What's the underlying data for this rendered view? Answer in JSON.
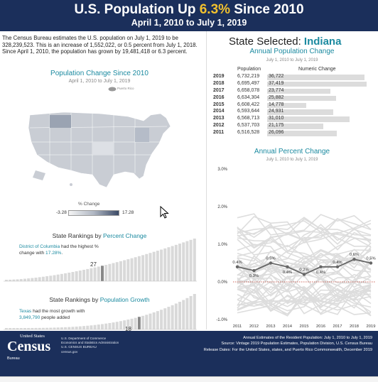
{
  "header": {
    "title_pre": "U.S. Population Up ",
    "title_highlight": "6.3%",
    "title_post": " Since 2010",
    "subtitle": "April 1, 2010 to July 1, 2019"
  },
  "intro_text": "The Census Bureau estimates the U.S. population on July 1, 2019 to be 328,239,523. This is an increase of 1,552,022, or 0.5 percent from July 1, 2018. Since April 1, 2010, the population has grown by 19,481,418 or 6.3 percent.",
  "map_section": {
    "title": "Population Change Since 2010",
    "subtitle": "April 1, 2010 to July 1, 2019",
    "puerto_rico_label": "Puerto Rico",
    "legend_title": "% Change",
    "legend_min": "-3.28",
    "legend_max": "17.28"
  },
  "rank_percent": {
    "title_pre": "State Rankings by ",
    "title_hl": "Percent Change",
    "note_state": "District of Columbia",
    "note_mid": " had the highest % change with ",
    "note_value": "17.28%",
    "note_end": ".",
    "selected_rank": "27"
  },
  "rank_growth": {
    "title_pre": "State Rankings by ",
    "title_hl": "Population Growth",
    "note_state": "Texas",
    "note_mid": " had the most growth with ",
    "note_value": "3,849,790",
    "note_end": " people added",
    "selected_rank": "18"
  },
  "state_selected": {
    "label": "State Selected: ",
    "state": "Indiana"
  },
  "annual_pop": {
    "title": "Annual Population Change",
    "subtitle": "July 1, 2010 to July 1, 2019",
    "col_population": "Population",
    "col_numeric": "Numeric Change",
    "rows": [
      {
        "year": "2019",
        "pop": "6,732,219",
        "chg": "36,722",
        "v": 36722
      },
      {
        "year": "2018",
        "pop": "6,695,497",
        "chg": "37,419",
        "v": 37419
      },
      {
        "year": "2017",
        "pop": "6,658,078",
        "chg": "23,774",
        "v": 23774
      },
      {
        "year": "2016",
        "pop": "6,634,304",
        "chg": "25,882",
        "v": 25882
      },
      {
        "year": "2015",
        "pop": "6,608,422",
        "chg": "14,778",
        "v": 14778
      },
      {
        "year": "2014",
        "pop": "6,593,644",
        "chg": "24,931",
        "v": 24931
      },
      {
        "year": "2013",
        "pop": "6,568,713",
        "chg": "31,010",
        "v": 31010
      },
      {
        "year": "2012",
        "pop": "6,537,703",
        "chg": "21,175",
        "v": 21175
      },
      {
        "year": "2011",
        "pop": "6,516,528",
        "chg": "26,096",
        "v": 26096
      }
    ]
  },
  "chart_data": {
    "type": "line",
    "title": "Annual Percent Change",
    "subtitle": "July 1, 2010 to July 1, 2019",
    "x": [
      "2011",
      "2012",
      "2013",
      "2014",
      "2015",
      "2016",
      "2017",
      "2018",
      "2019"
    ],
    "y_ticks": [
      "3.0%",
      "2.0%",
      "1.0%",
      "0.0%",
      "-1.0%"
    ],
    "ylim": [
      -1.0,
      3.0
    ],
    "series": [
      {
        "values": [
          0.4,
          0.3,
          0.5,
          0.4,
          0.2,
          0.4,
          0.4,
          0.6,
          0.5
        ],
        "labels": [
          "0.4%",
          "0.3%",
          "0.5%",
          "0.4%",
          "0.2%",
          "0.4%",
          "0.4%",
          "0.6%",
          "0.5%"
        ],
        "color": "#666666"
      }
    ],
    "background_series_color": "#dddddd",
    "zero_line_color": "#c0392b"
  },
  "footer": {
    "logo_us": "United States",
    "logo_census": "Census",
    "logo_bureau": "Bureau",
    "dept": [
      "U.S. Department of Commerce",
      "Economics and Statistics Administration",
      "U.S. CENSUS BUREAU",
      "census.gov"
    ],
    "src": [
      "Annual Estimates of the Resident Population: July 1, 2010 to July 1, 2019",
      "Source: Vintage 2019 Population Estimates, Population Division, U.S. Census Bureau",
      "Release Dates: For the United States, states, and Puerto Rico Commonwealth, December 2019"
    ]
  },
  "colors": {
    "navy": "#1b2f5b",
    "accent": "#1b8aa0",
    "highlight": "#f2c12e"
  }
}
